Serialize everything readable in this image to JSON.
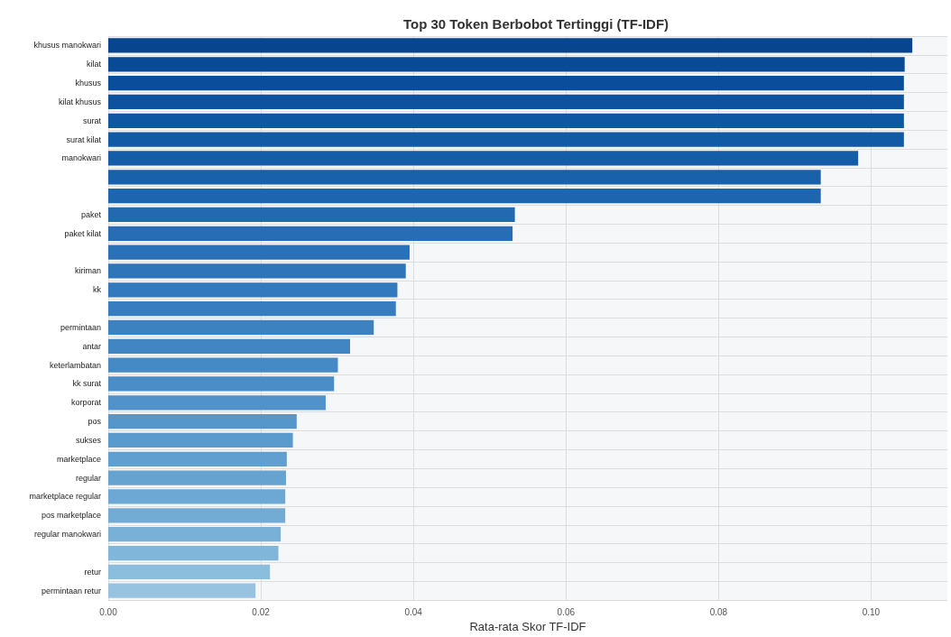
{
  "chart_data": {
    "type": "bar",
    "orientation": "horizontal",
    "title": "Top 30 Token Berbobot Tertinggi (TF-IDF)",
    "xlabel": "Rata-rata Skor TF-IDF",
    "categories": [
      "khusus manokwari",
      "kilat",
      "khusus",
      "kilat khusus",
      "surat",
      "surat kilat",
      "manokwari",
      null,
      null,
      "paket",
      "paket kilat",
      null,
      "kiriman",
      "kk",
      null,
      "permintaan",
      "antar",
      "keterlambatan",
      "kk surat",
      "korporat",
      "pos",
      "sukses",
      "marketplace",
      "regular",
      "marketplace regular",
      "pos marketplace",
      "regular manokwari",
      null,
      "retur",
      "permintaan retur"
    ],
    "values": [
      0.1054,
      0.1044,
      0.1043,
      0.1043,
      0.1043,
      0.1043,
      0.0983,
      0.0934,
      0.0934,
      0.0533,
      0.053,
      0.0395,
      0.039,
      0.0379,
      0.0377,
      0.0348,
      0.0317,
      0.0301,
      0.0296,
      0.0285,
      0.0247,
      0.0242,
      0.0234,
      0.0233,
      0.0232,
      0.0232,
      0.0226,
      0.0223,
      0.0212,
      0.0193
    ],
    "colors": [
      "#08458f",
      "#084a96",
      "#0a4e9b",
      "#0c529f",
      "#0f56a3",
      "#1259a6",
      "#165da9",
      "#1a61ac",
      "#1e65af",
      "#2269b2",
      "#266db5",
      "#2a71b8",
      "#2f75ba",
      "#3379bd",
      "#377dbf",
      "#3c82c1",
      "#4186c3",
      "#468ac5",
      "#4b8ec7",
      "#5092c9",
      "#5596cb",
      "#5a9acd",
      "#609fcf",
      "#66a3d1",
      "#6ca8d3",
      "#72acd5",
      "#78b0d7",
      "#80b6da",
      "#8bbddd",
      "#97c3e0"
    ],
    "xlim": [
      0,
      0.11
    ],
    "xticks": [
      {
        "value": 0,
        "label": "0.00"
      },
      {
        "value": 0.02,
        "label": "0.02"
      },
      {
        "value": 0.04,
        "label": "0.04"
      },
      {
        "value": 0.06,
        "label": "0.06"
      },
      {
        "value": 0.08,
        "label": "0.08"
      },
      {
        "value": 0.1,
        "label": "0.10"
      }
    ],
    "grid": true
  }
}
